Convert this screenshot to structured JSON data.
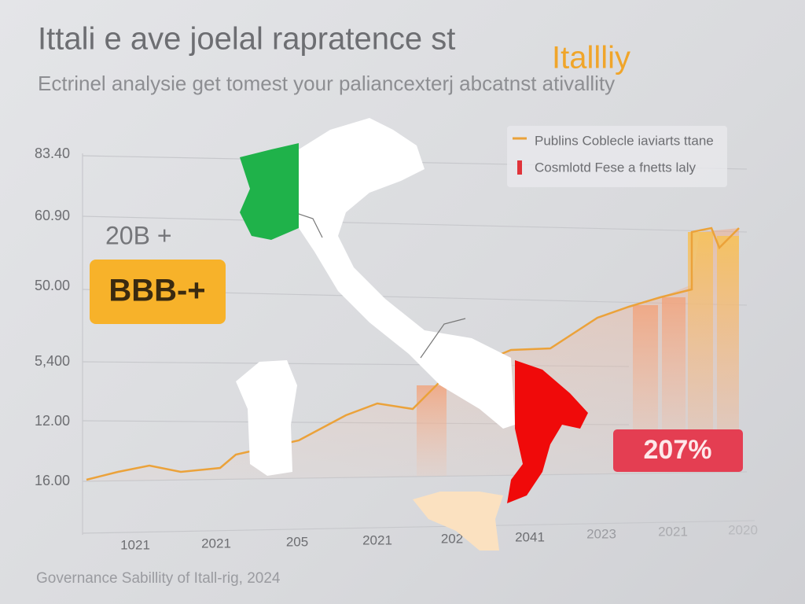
{
  "header": {
    "title": "Ittali e ave joelal rapratence st",
    "title_highlight": "Itallliy",
    "subtitle": "Ectrinel analysie get tomest your paliancexterj abcatnst ativallity"
  },
  "axis": {
    "y_labels": [
      "83.40",
      "60.90",
      "50.00",
      "5,400",
      "12.00",
      "16.00"
    ],
    "x_labels": [
      "1021",
      "2021",
      "205",
      "2021",
      "202",
      "2041",
      "2023",
      "2021",
      "2020"
    ]
  },
  "legend": {
    "items": [
      "Publins Coblecle iaviarts ttane",
      "Cosmlotd Fese a fnetts laly"
    ]
  },
  "callouts": {
    "small": "20B +",
    "rating": "BBB-+",
    "percent": "207%"
  },
  "footer": "Governance Sabillity of Itall-rig, 2024"
}
